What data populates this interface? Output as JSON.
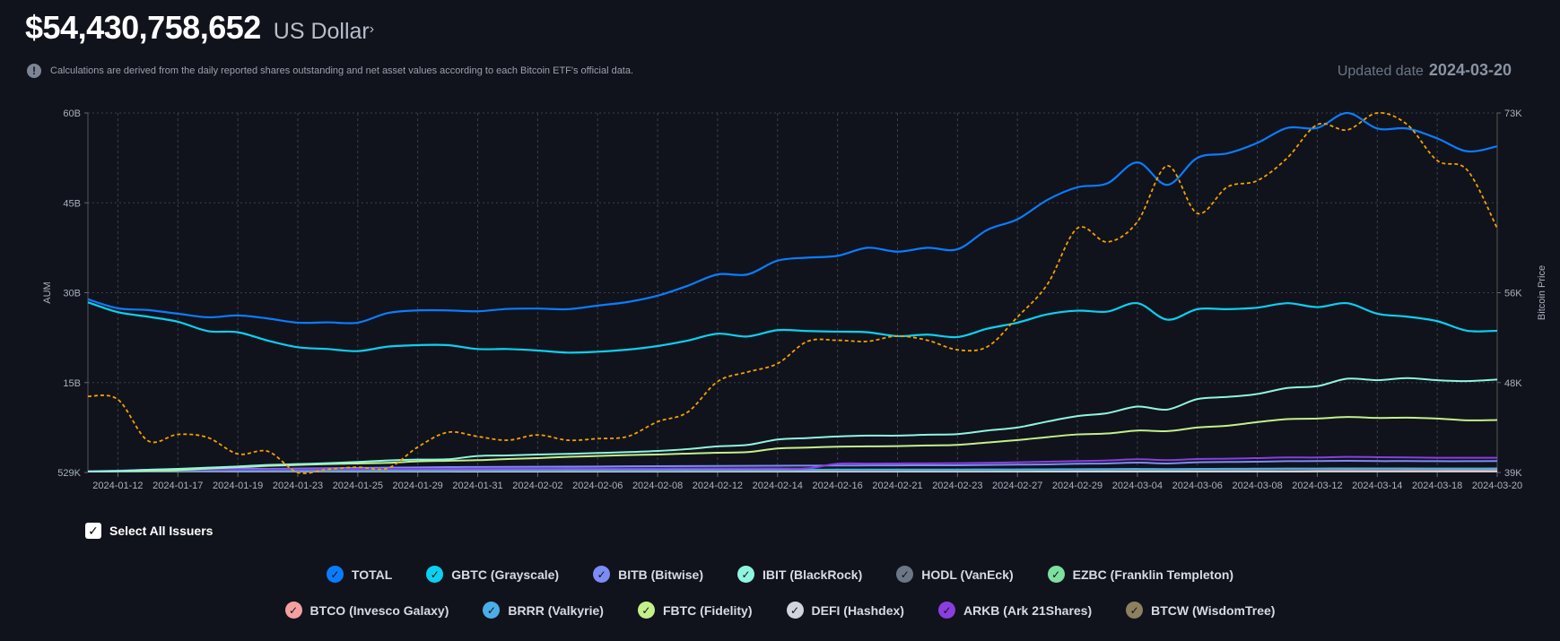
{
  "header": {
    "amount": "$54,430,758,652",
    "currency": "US Dollar",
    "currency_icon": "chevron-right-icon"
  },
  "info": {
    "icon": "exclamation-circle-icon",
    "text": "Calculations are derived from the daily reported shares outstanding and net asset values according to each Bitcoin ETF's official data."
  },
  "updated": {
    "label": "Updated date",
    "value": "2024-03-20"
  },
  "select_all": {
    "label": "Select All Issuers",
    "checked": true
  },
  "chart_data": {
    "type": "line",
    "ylabel": "AUM",
    "y2label": "Bitcoin Price",
    "ylim": [
      0,
      60
    ],
    "y2lim": [
      39000,
      73000
    ],
    "yticks": [
      "529K",
      "15B",
      "30B",
      "45B",
      "60B"
    ],
    "y2ticks": [
      "39K",
      "48K",
      "56K",
      "73K"
    ],
    "grid": true,
    "x": [
      "2024-01-11",
      "2024-01-12",
      "2024-01-16",
      "2024-01-17",
      "2024-01-18",
      "2024-01-19",
      "2024-01-22",
      "2024-01-23",
      "2024-01-24",
      "2024-01-25",
      "2024-01-26",
      "2024-01-29",
      "2024-01-30",
      "2024-01-31",
      "2024-02-01",
      "2024-02-02",
      "2024-02-05",
      "2024-02-06",
      "2024-02-07",
      "2024-02-08",
      "2024-02-09",
      "2024-02-12",
      "2024-02-13",
      "2024-02-14",
      "2024-02-15",
      "2024-02-16",
      "2024-02-20",
      "2024-02-21",
      "2024-02-22",
      "2024-02-23",
      "2024-02-26",
      "2024-02-27",
      "2024-02-28",
      "2024-02-29",
      "2024-03-01",
      "2024-03-04",
      "2024-03-05",
      "2024-03-06",
      "2024-03-07",
      "2024-03-08",
      "2024-03-11",
      "2024-03-12",
      "2024-03-13",
      "2024-03-14",
      "2024-03-15",
      "2024-03-18",
      "2024-03-19",
      "2024-03-20"
    ],
    "xticks": [
      "2024-01-12",
      "2024-01-17",
      "2024-01-19",
      "2024-01-23",
      "2024-01-25",
      "2024-01-29",
      "2024-01-31",
      "2024-02-02",
      "2024-02-06",
      "2024-02-08",
      "2024-02-12",
      "2024-02-14",
      "2024-02-16",
      "2024-02-21",
      "2024-02-23",
      "2024-02-27",
      "2024-02-29",
      "2024-03-04",
      "2024-03-06",
      "2024-03-08",
      "2024-03-12",
      "2024-03-14",
      "2024-03-18",
      "2024-03-20"
    ],
    "series": [
      {
        "name": "BTCW (WisdomTree)",
        "color": "#8c8060",
        "values": [
          0,
          0,
          0.005,
          0.005,
          0.01,
          0.01,
          0.01,
          0.01,
          0.01,
          0.015,
          0.015,
          0.015,
          0.015,
          0.02,
          0.02,
          0.02,
          0.02,
          0.02,
          0.02,
          0.02,
          0.02,
          0.025,
          0.025,
          0.025,
          0.025,
          0.025,
          0.025,
          0.025,
          0.03,
          0.03,
          0.03,
          0.03,
          0.03,
          0.03,
          0.03,
          0.035,
          0.035,
          0.035,
          0.035,
          0.04,
          0.04,
          0.04,
          0.04,
          0.04,
          0.04,
          0.04,
          0.04,
          0.04
        ]
      },
      {
        "name": "DEFI (Hashdex)",
        "color": "#d0d4dc",
        "values": [
          0,
          0,
          0,
          0,
          0,
          0,
          0,
          0,
          0,
          0,
          0,
          0,
          0,
          0,
          0,
          0,
          0,
          0,
          0,
          0,
          0,
          0,
          0,
          0,
          0,
          0,
          0,
          0,
          0,
          0,
          0,
          0,
          0,
          0,
          0,
          0,
          0,
          0,
          0,
          0,
          0,
          0.01,
          0.01,
          0.01,
          0.01,
          0.01,
          0.01,
          0.01
        ]
      },
      {
        "name": "EZBC (Franklin Templeton)",
        "color": "#7ddfa0",
        "values": [
          0.01,
          0.03,
          0.05,
          0.06,
          0.07,
          0.08,
          0.09,
          0.1,
          0.1,
          0.11,
          0.12,
          0.13,
          0.14,
          0.15,
          0.16,
          0.16,
          0.17,
          0.17,
          0.18,
          0.18,
          0.19,
          0.2,
          0.2,
          0.21,
          0.22,
          0.22,
          0.22,
          0.23,
          0.23,
          0.23,
          0.24,
          0.25,
          0.27,
          0.29,
          0.3,
          0.32,
          0.3,
          0.33,
          0.34,
          0.35,
          0.37,
          0.38,
          0.4,
          0.39,
          0.39,
          0.38,
          0.37,
          0.38
        ]
      },
      {
        "name": "BTCO (Invesco Galaxy)",
        "color": "#f4a0a0",
        "values": [
          0.01,
          0.05,
          0.1,
          0.12,
          0.14,
          0.16,
          0.18,
          0.2,
          0.21,
          0.22,
          0.23,
          0.24,
          0.24,
          0.25,
          0.25,
          0.25,
          0.25,
          0.26,
          0.26,
          0.26,
          0.27,
          0.27,
          0.27,
          0.28,
          0.28,
          0.28,
          0.28,
          0.28,
          0.28,
          0.28,
          0.29,
          0.3,
          0.31,
          0.32,
          0.33,
          0.35,
          0.33,
          0.35,
          0.36,
          0.36,
          0.37,
          0.37,
          0.38,
          0.37,
          0.36,
          0.35,
          0.34,
          0.35
        ]
      },
      {
        "name": "HODL (VanEck)",
        "color": "#6b7686",
        "values": [
          0.01,
          0.02,
          0.04,
          0.05,
          0.06,
          0.07,
          0.08,
          0.09,
          0.1,
          0.11,
          0.12,
          0.13,
          0.14,
          0.15,
          0.16,
          0.17,
          0.18,
          0.18,
          0.19,
          0.19,
          0.2,
          0.21,
          0.22,
          0.23,
          0.24,
          0.24,
          0.25,
          0.25,
          0.26,
          0.26,
          0.27,
          0.28,
          0.3,
          0.32,
          0.33,
          0.36,
          0.34,
          0.37,
          0.38,
          0.4,
          0.42,
          0.44,
          0.48,
          0.47,
          0.48,
          0.48,
          0.48,
          0.5
        ]
      },
      {
        "name": "BRRR (Valkyrie)",
        "color": "#4aaee8",
        "values": [
          0.01,
          0.05,
          0.1,
          0.13,
          0.15,
          0.17,
          0.19,
          0.2,
          0.21,
          0.22,
          0.23,
          0.24,
          0.25,
          0.26,
          0.27,
          0.27,
          0.28,
          0.28,
          0.29,
          0.29,
          0.3,
          0.31,
          0.31,
          0.32,
          0.32,
          0.33,
          0.33,
          0.33,
          0.34,
          0.34,
          0.35,
          0.36,
          0.38,
          0.4,
          0.41,
          0.44,
          0.42,
          0.45,
          0.46,
          0.48,
          0.5,
          0.51,
          0.53,
          0.52,
          0.52,
          0.51,
          0.5,
          0.52
        ]
      },
      {
        "name": "BITB (Bitwise)",
        "color": "#7b8cf7",
        "values": [
          0.05,
          0.15,
          0.3,
          0.4,
          0.5,
          0.55,
          0.6,
          0.65,
          0.7,
          0.75,
          0.8,
          0.85,
          0.9,
          0.92,
          0.94,
          0.96,
          0.98,
          1.0,
          1.02,
          1.04,
          1.06,
          1.08,
          1.1,
          1.12,
          1.14,
          1.16,
          1.17,
          1.18,
          1.2,
          1.2,
          1.25,
          1.3,
          1.35,
          1.45,
          1.5,
          1.65,
          1.5,
          1.7,
          1.75,
          1.8,
          1.88,
          1.9,
          1.95,
          1.9,
          1.9,
          1.88,
          1.88,
          1.9
        ]
      },
      {
        "name": "ARKB (Ark 21Shares)",
        "color": "#8a3ee0",
        "values": [
          0.02,
          0.1,
          0.2,
          0.25,
          0.3,
          0.33,
          0.36,
          0.38,
          0.4,
          0.42,
          0.44,
          0.45,
          0.46,
          0.47,
          0.48,
          0.49,
          0.5,
          0.5,
          0.51,
          0.51,
          0.52,
          0.52,
          0.53,
          0.53,
          0.54,
          1.45,
          1.48,
          1.5,
          1.52,
          1.55,
          1.6,
          1.7,
          1.8,
          1.9,
          2.0,
          2.2,
          2.05,
          2.25,
          2.3,
          2.4,
          2.5,
          2.5,
          2.6,
          2.55,
          2.5,
          2.45,
          2.45,
          2.45
        ]
      },
      {
        "name": "FBTC (Fidelity)",
        "color": "#c4f08a",
        "values": [
          0,
          0.05,
          0.15,
          0.25,
          0.5,
          0.9,
          1.1,
          1.25,
          1.4,
          1.5,
          1.6,
          1.85,
          1.95,
          2.05,
          2.25,
          2.4,
          2.6,
          2.75,
          2.9,
          3.0,
          3.15,
          3.3,
          3.4,
          4.0,
          4.15,
          4.3,
          4.35,
          4.4,
          4.5,
          4.6,
          5.0,
          5.4,
          5.9,
          6.35,
          6.5,
          7.0,
          6.9,
          7.5,
          7.8,
          8.4,
          8.9,
          9.0,
          9.25,
          9.1,
          9.15,
          9.0,
          8.7,
          8.75
        ]
      },
      {
        "name": "IBIT (BlackRock)",
        "color": "#8ff5e0",
        "values": [
          0,
          0.1,
          0.3,
          0.6,
          0.8,
          1.0,
          1.25,
          1.4,
          1.55,
          1.75,
          2.0,
          2.15,
          2.2,
          2.75,
          2.85,
          3.0,
          3.1,
          3.25,
          3.4,
          3.6,
          3.9,
          4.35,
          4.6,
          5.5,
          5.75,
          6.0,
          6.15,
          6.15,
          6.3,
          6.4,
          7.0,
          7.5,
          8.5,
          9.4,
          9.9,
          11.0,
          10.5,
          12.25,
          12.6,
          13.1,
          14.1,
          14.4,
          15.65,
          15.4,
          15.75,
          15.4,
          15.25,
          15.5
        ]
      },
      {
        "name": "GBTC (Grayscale)",
        "color": "#0bd0f0",
        "values": [
          28.4,
          26.75,
          26.0,
          25.15,
          23.6,
          23.4,
          22.0,
          20.9,
          20.6,
          20.25,
          21.0,
          21.25,
          21.25,
          20.6,
          20.6,
          20.35,
          20.0,
          20.15,
          20.5,
          21.1,
          22.0,
          23.15,
          22.7,
          23.75,
          23.6,
          23.5,
          23.4,
          22.75,
          23.0,
          22.6,
          24.0,
          25.0,
          26.4,
          27.0,
          26.85,
          28.25,
          25.5,
          27.25,
          27.25,
          27.5,
          28.25,
          27.6,
          28.25,
          26.5,
          26.0,
          25.25,
          23.65,
          23.65
        ]
      },
      {
        "name": "TOTAL",
        "color": "#0a7cff",
        "values": [
          28.9,
          27.4,
          27.1,
          26.5,
          25.9,
          26.2,
          25.7,
          25.0,
          25.05,
          25.0,
          26.6,
          27.05,
          27.05,
          26.9,
          27.3,
          27.35,
          27.25,
          27.85,
          28.45,
          29.5,
          31.15,
          33.05,
          33.05,
          35.35,
          35.85,
          36.15,
          37.5,
          36.85,
          37.5,
          37.25,
          40.5,
          42.25,
          45.5,
          47.6,
          48.25,
          51.75,
          48.0,
          52.5,
          53.25,
          55.0,
          57.5,
          57.5,
          60.0,
          57.4,
          57.4,
          55.75,
          53.6,
          54.43
        ]
      }
    ],
    "price_series": {
      "axis": "right",
      "color": "#f5a000",
      "style": "dashed",
      "values": [
        46200,
        45900,
        42000,
        42600,
        42300,
        40750,
        41000,
        39000,
        39300,
        39500,
        39400,
        41400,
        42800,
        42400,
        42050,
        42550,
        42050,
        42200,
        42400,
        43800,
        44700,
        47600,
        48500,
        49300,
        51400,
        51500,
        51400,
        51900,
        51500,
        50600,
        50900,
        53700,
        56800,
        62100,
        60800,
        62700,
        68000,
        63500,
        66000,
        66600,
        68750,
        71900,
        71400,
        73000,
        71900,
        68500,
        67600,
        62100
      ]
    }
  },
  "legend": {
    "row1": [
      {
        "label": "TOTAL",
        "color": "#0a7cff",
        "checked": true
      },
      {
        "label": "GBTC (Grayscale)",
        "color": "#0bd0f0",
        "checked": true
      },
      {
        "label": "BITB (Bitwise)",
        "color": "#7b8cf7",
        "checked": true
      },
      {
        "label": "IBIT (BlackRock)",
        "color": "#8ff5e0",
        "checked": true
      },
      {
        "label": "HODL (VanEck)",
        "color": "#6b7686",
        "checked": true
      },
      {
        "label": "EZBC (Franklin Templeton)",
        "color": "#7ddfa0",
        "checked": true
      }
    ],
    "row2": [
      {
        "label": "BTCO (Invesco Galaxy)",
        "color": "#f4a0a0",
        "checked": true
      },
      {
        "label": "BRRR (Valkyrie)",
        "color": "#4aaee8",
        "checked": true
      },
      {
        "label": "FBTC (Fidelity)",
        "color": "#c4f08a",
        "checked": true
      },
      {
        "label": "DEFI (Hashdex)",
        "color": "#d0d4dc",
        "checked": true
      },
      {
        "label": "ARKB (Ark 21Shares)",
        "color": "#8a3ee0",
        "checked": true
      },
      {
        "label": "BTCW (WisdomTree)",
        "color": "#8c8060",
        "checked": true
      }
    ]
  }
}
